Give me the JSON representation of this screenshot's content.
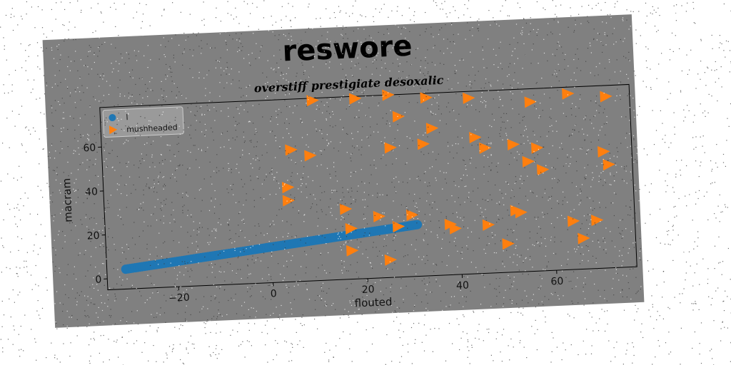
{
  "figure": {
    "title": "reswore",
    "background": "#808080"
  },
  "chart_data": {
    "type": "scatter",
    "title": "overstiff prestigiate desoxalic",
    "xlabel": "flouted",
    "ylabel": "macram",
    "xlim": [
      -35,
      77
    ],
    "ylim": [
      -5,
      78
    ],
    "xticks": [
      -20,
      0,
      20,
      40,
      60
    ],
    "yticks": [
      0,
      20,
      40,
      60
    ],
    "grid": false,
    "legend": "top-left",
    "series": [
      {
        "name": "l",
        "marker": "circle",
        "color": "#1f77b4",
        "x": [
          -31,
          -28,
          -25,
          -22,
          -19,
          -16,
          -13,
          -10,
          -7,
          -4,
          -1,
          2,
          5,
          8,
          11,
          14,
          17,
          20,
          23,
          26,
          29,
          31
        ],
        "y": [
          4.0,
          4.7,
          5.4,
          6.1,
          6.8,
          7.5,
          8.2,
          8.9,
          9.6,
          10.3,
          11.0,
          11.7,
          12.4,
          13.1,
          13.8,
          14.5,
          15.2,
          15.9,
          16.6,
          17.3,
          18.0,
          18.5
        ]
      },
      {
        "name": "mushheaded",
        "marker": "triangle-right",
        "color": "#ff7f0e",
        "x": [
          10,
          19,
          26,
          34,
          43,
          56,
          64,
          72,
          28,
          35,
          26,
          33,
          44,
          46,
          52,
          57,
          5,
          9,
          55,
          58,
          71,
          72,
          4,
          4,
          16,
          23,
          30,
          17,
          27,
          38,
          39,
          46,
          52,
          53,
          64,
          69,
          17,
          50,
          66,
          25
        ],
        "y": [
          77,
          77,
          78,
          76,
          75,
          72,
          75,
          73,
          68,
          62,
          54,
          55,
          57,
          52,
          53,
          51,
          55,
          52,
          45,
          41,
          48,
          42,
          38,
          32,
          27,
          23,
          23,
          18,
          18,
          18,
          16,
          17,
          23,
          22,
          17,
          17,
          8,
          8,
          9,
          3
        ]
      }
    ]
  }
}
